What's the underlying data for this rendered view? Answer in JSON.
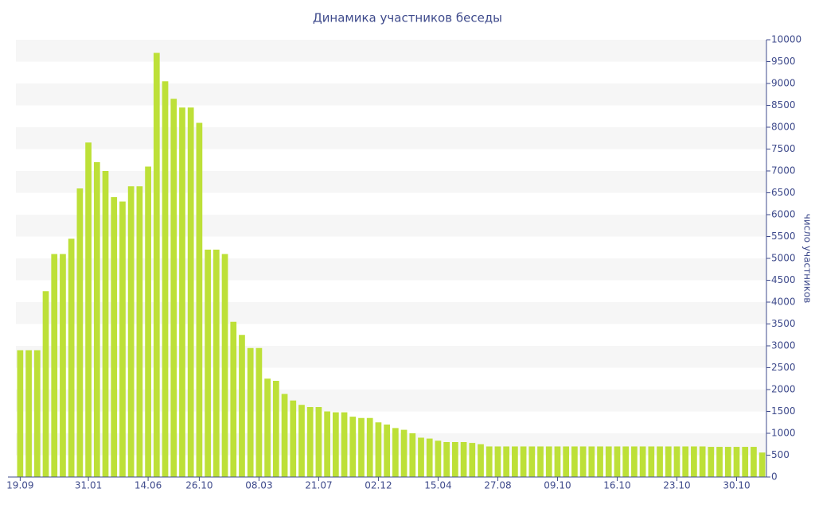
{
  "chart_data": {
    "type": "bar",
    "title": "Динамика участников беседы",
    "y_label": "число участников",
    "categories": [
      "19.09",
      null,
      null,
      null,
      null,
      null,
      null,
      null,
      "31.01",
      null,
      null,
      null,
      null,
      null,
      null,
      "14.06",
      null,
      null,
      null,
      null,
      null,
      "26.10",
      null,
      null,
      null,
      null,
      null,
      null,
      "08.03",
      null,
      null,
      null,
      null,
      null,
      null,
      "21.07",
      null,
      null,
      null,
      null,
      null,
      null,
      "02.12",
      null,
      null,
      null,
      null,
      null,
      null,
      "15.04",
      null,
      null,
      null,
      null,
      null,
      null,
      "27.08",
      null,
      null,
      null,
      null,
      null,
      null,
      "09.10",
      null,
      null,
      null,
      null,
      null,
      null,
      "16.10",
      null,
      null,
      null,
      null,
      null,
      null,
      "23.10",
      null,
      null,
      null,
      null,
      null,
      null,
      "30.10",
      null,
      null,
      null
    ],
    "values": [
      2900,
      2900,
      2900,
      4250,
      5100,
      5100,
      5450,
      6600,
      7650,
      7200,
      7000,
      6400,
      6300,
      6650,
      6650,
      7100,
      9700,
      9050,
      8650,
      8450,
      8450,
      8100,
      5200,
      5200,
      5100,
      3550,
      3250,
      2950,
      2950,
      2250,
      2200,
      1900,
      1750,
      1650,
      1600,
      1600,
      1500,
      1480,
      1480,
      1380,
      1350,
      1350,
      1250,
      1200,
      1120,
      1080,
      1000,
      900,
      880,
      830,
      800,
      800,
      800,
      780,
      750,
      700,
      700,
      700,
      700,
      700,
      700,
      700,
      700,
      700,
      700,
      700,
      700,
      700,
      700,
      700,
      700,
      700,
      700,
      700,
      700,
      700,
      700,
      700,
      700,
      700,
      700,
      690,
      690,
      690,
      690,
      690,
      690,
      560
    ],
    "color": "#bde038",
    "ylim": [
      0,
      10000
    ],
    "yticks": [
      0,
      500,
      1000,
      1500,
      2000,
      2500,
      3000,
      3500,
      4000,
      4500,
      5000,
      5500,
      6000,
      6500,
      7000,
      7500,
      8000,
      8500,
      9000,
      9500,
      10000
    ],
    "grid": "bands",
    "y_axis_side": "right"
  }
}
